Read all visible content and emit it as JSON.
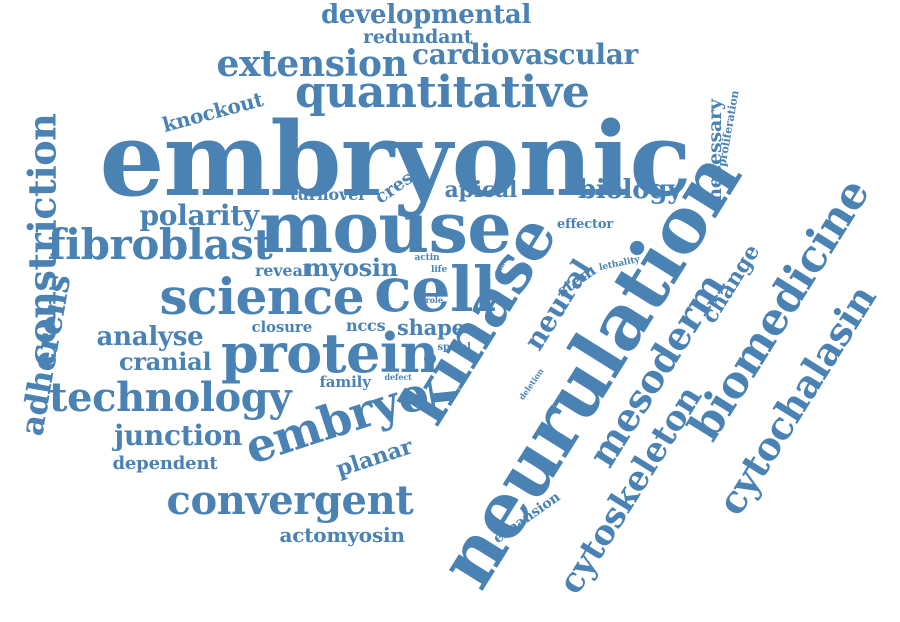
{
  "colors": {
    "word": "#4a82b4",
    "background": "#ffffff"
  },
  "words": [
    "embryonic",
    "neurulation",
    "mouse",
    "kinase",
    "cell",
    "science",
    "protein",
    "embryo",
    "quantitative",
    "mesoderm",
    "biomedicine",
    "cytoskeleton",
    "cytochalasin",
    "technology",
    "convergent",
    "fibroblast",
    "extension",
    "developmental",
    "cardiovascular",
    "constriction",
    "adherens",
    "neural",
    "polarity",
    "biology",
    "redundant",
    "knockout",
    "analyse",
    "junction",
    "cranial",
    "change",
    "myosin",
    "apical",
    "shape",
    "planar",
    "actomyosin",
    "necessary",
    "dependent",
    "crest",
    "turnover",
    "closure",
    "nccs",
    "reveal",
    "family",
    "expansion",
    "effector",
    "stem",
    "proliferation",
    "lethality",
    "spinal",
    "tube",
    "life",
    "actin",
    "role",
    "defect",
    "deletion"
  ]
}
